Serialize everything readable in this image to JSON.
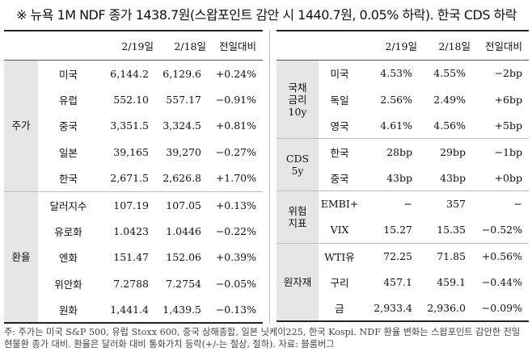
{
  "title": "※ 뉴욕 1M NDF 종가 1438.7원(스왑포인트 감안 시 1440.7원, 0.05% 하락). 한국 CDS 하락",
  "left": {
    "headers": [
      "",
      "",
      "2/19일",
      "2/18일",
      "전일대비"
    ],
    "groups": [
      {
        "label": "주가",
        "rows": [
          [
            "미국",
            "6,144.2",
            "6,129.6",
            "+0.24%"
          ],
          [
            "유럽",
            "552.10",
            "557.17",
            "−0.91%"
          ],
          [
            "중국",
            "3,351.5",
            "3,324.5",
            "+0.81%"
          ],
          [
            "일본",
            "39,165",
            "39,270",
            "−0.27%"
          ],
          [
            "한국",
            "2,671.5",
            "2,626.8",
            "+1.70%"
          ]
        ]
      },
      {
        "label": "환율",
        "rows": [
          [
            "달러지수",
            "107.19",
            "107.05",
            "+0.13%"
          ],
          [
            "유로화",
            "1.0423",
            "1.0446",
            "−0.22%"
          ],
          [
            "엔화",
            "151.47",
            "152.06",
            "+0.39%"
          ],
          [
            "위안화",
            "7.2788",
            "7.2754",
            "−0.05%"
          ],
          [
            "원화",
            "1,441.4",
            "1,439.5",
            "−0.13%"
          ]
        ]
      }
    ]
  },
  "right": {
    "headers": [
      "",
      "",
      "2/19일",
      "2/18일",
      "전일대비"
    ],
    "groups": [
      {
        "label": "국채\n금리\n10y",
        "rows": [
          [
            "미국",
            "4.53%",
            "4.55%",
            "−2bp"
          ],
          [
            "독일",
            "2.56%",
            "2.49%",
            "+6bp"
          ],
          [
            "영국",
            "4.61%",
            "4.56%",
            "+5bp"
          ]
        ]
      },
      {
        "label": "CDS\n5y",
        "rows": [
          [
            "한국",
            "28bp",
            "29bp",
            "−1bp"
          ],
          [
            "중국",
            "43bp",
            "43bp",
            "+0bp"
          ]
        ]
      },
      {
        "label": "위험\n지표",
        "rows": [
          [
            "EMBI+",
            "−",
            "357",
            "−"
          ],
          [
            "VIX",
            "15.27",
            "15.35",
            "−0.52%"
          ]
        ]
      },
      {
        "label": "원자재",
        "rows": [
          [
            "WTI유",
            "72.25",
            "71.85",
            "+0.56%"
          ],
          [
            "구리",
            "457.1",
            "459.1",
            "−0.44%"
          ],
          [
            "금",
            "2,933.4",
            "2,936.0",
            "−0.09%"
          ]
        ]
      }
    ]
  },
  "footnote": "주: 주가는 미국 S&P 500, 유럽 Stoxx 600, 중국 상해종합, 일본 닛케이225, 한국 Kospi. NDF 환율 변화는 스왑포인트 감안한 전일 현물환 종가 대비. 환율은 달러화 대비 통화가치 등락(+/-는 절상, 절하). 자료: 블룸버그"
}
